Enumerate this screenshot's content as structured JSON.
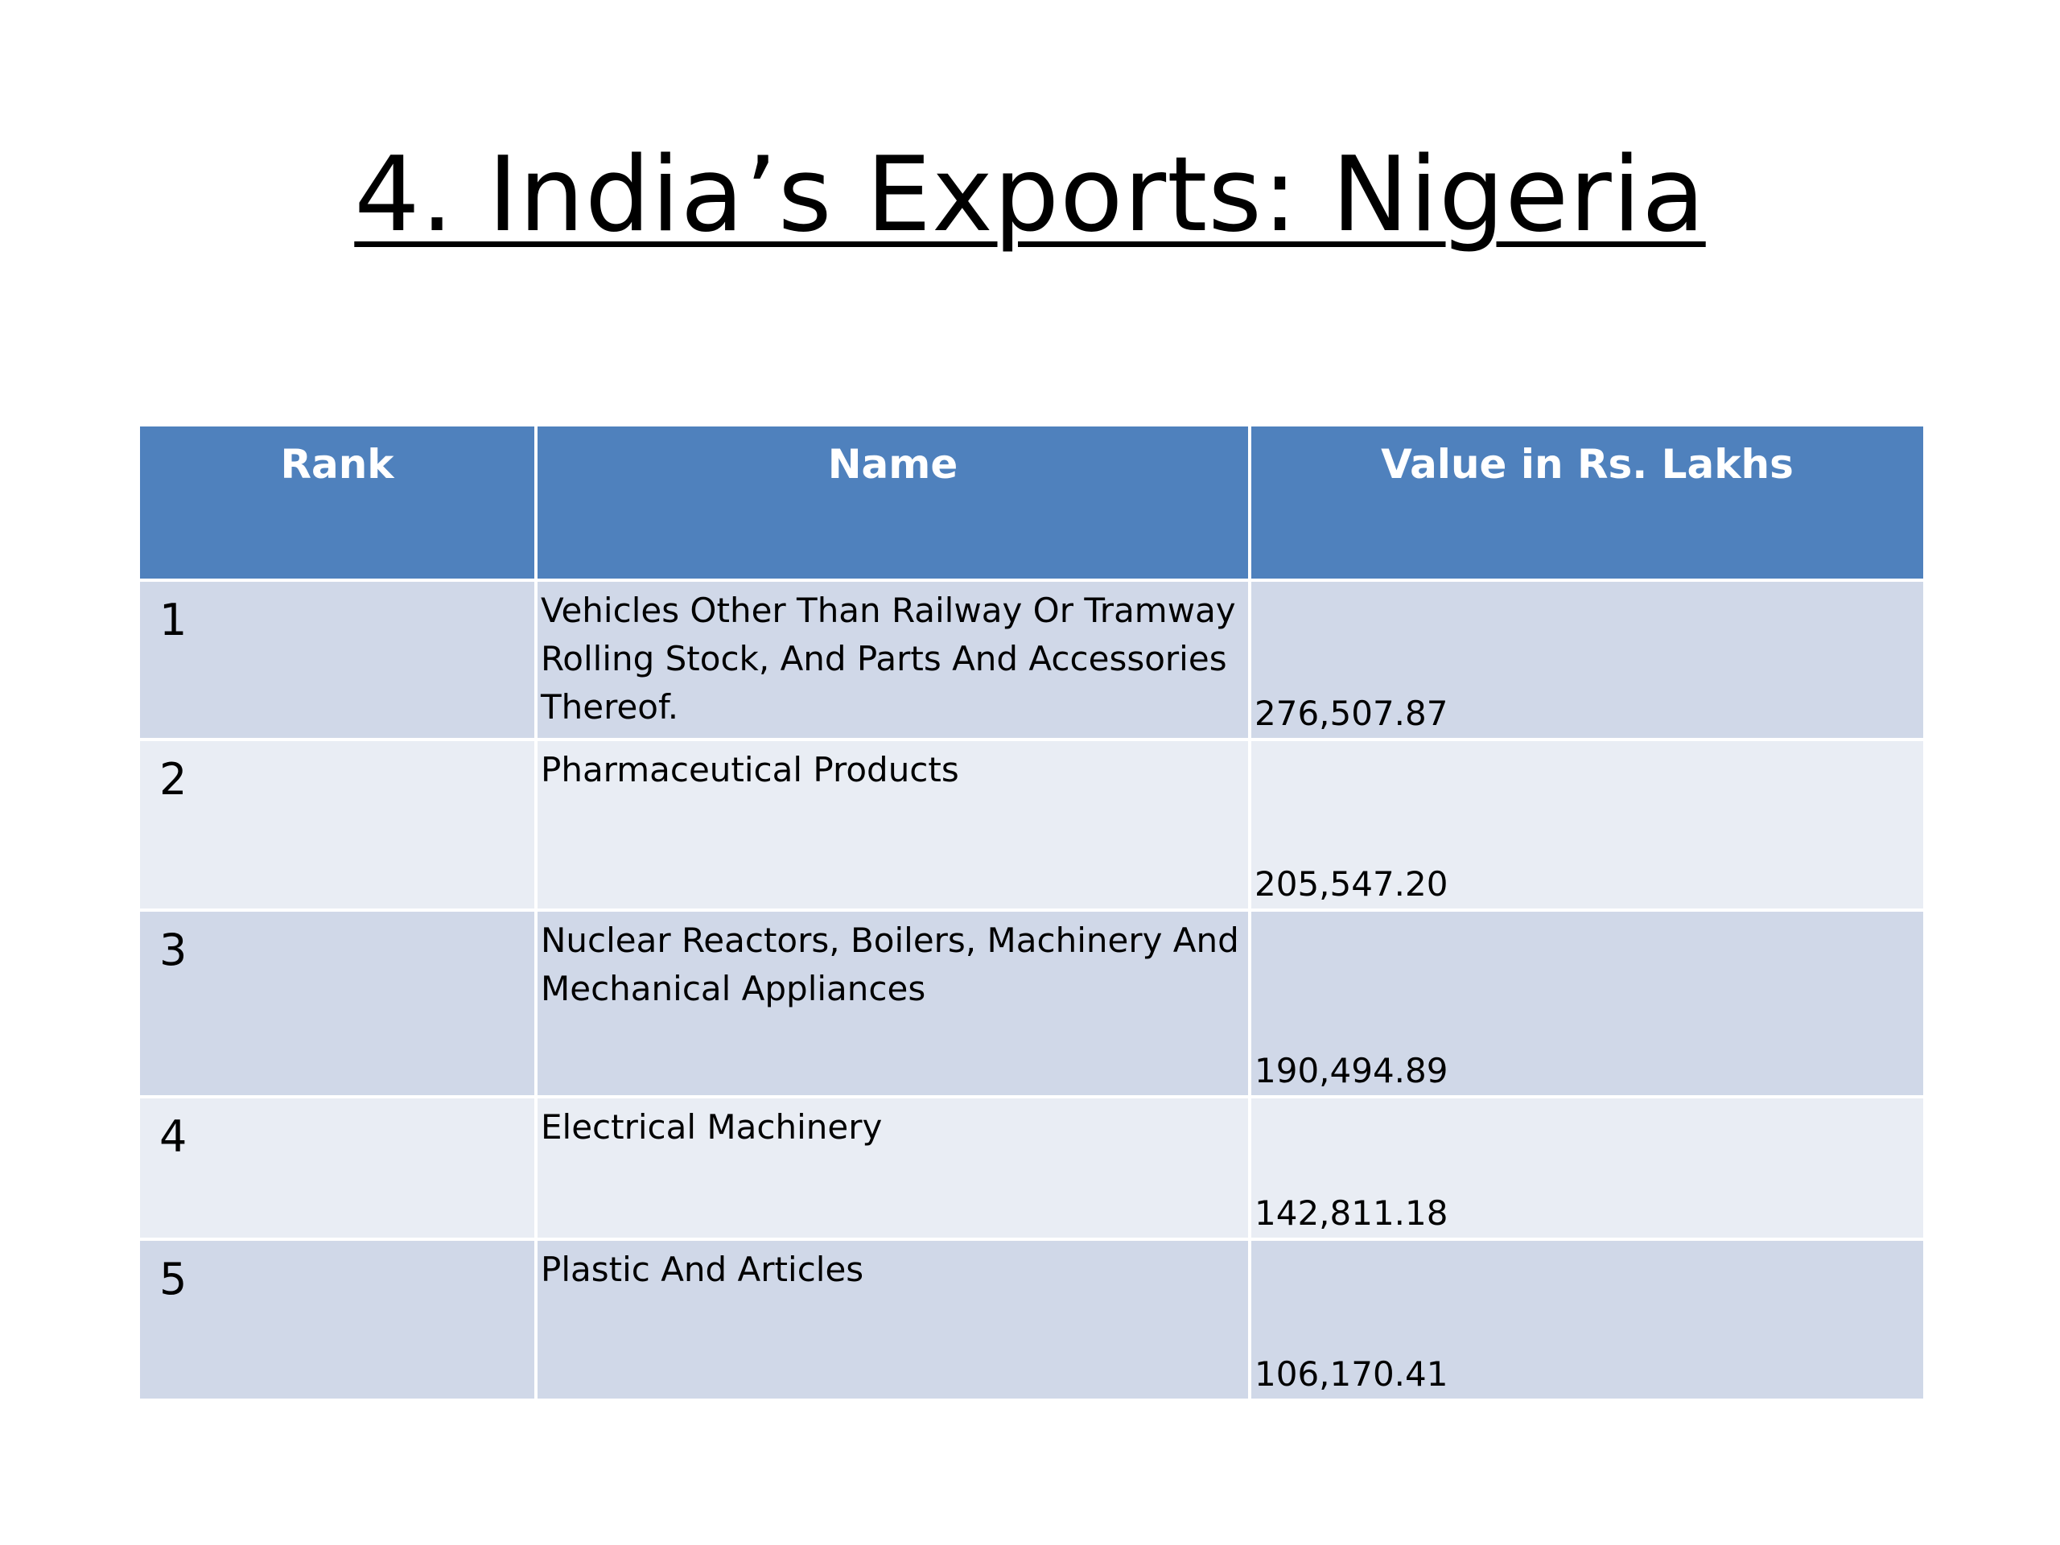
{
  "slide": {
    "title": "4. India’s Exports: Nigeria"
  },
  "table": {
    "headers": {
      "rank": "Rank",
      "name": "Name",
      "value": "Value in Rs. Lakhs"
    },
    "rows": [
      {
        "rank": "1",
        "name": "Vehicles Other Than Railway Or Tramway Rolling Stock, And Parts And Accessories Thereof.",
        "value": "276,507.87"
      },
      {
        "rank": "2",
        "name": "Pharmaceutical Products",
        "value": "205,547.20"
      },
      {
        "rank": "3",
        "name": "Nuclear Reactors, Boilers, Machinery And Mechanical Appliances",
        "value": "190,494.89"
      },
      {
        "rank": "4",
        "name": "Electrical Machinery",
        "value": "142,811.18"
      },
      {
        "rank": "5",
        "name": "Plastic And Articles",
        "value": "106,170.41"
      }
    ]
  },
  "colors": {
    "header_bg": "#4f81bd",
    "row_odd_bg": "#d0d8e8",
    "row_even_bg": "#e9edf4"
  }
}
